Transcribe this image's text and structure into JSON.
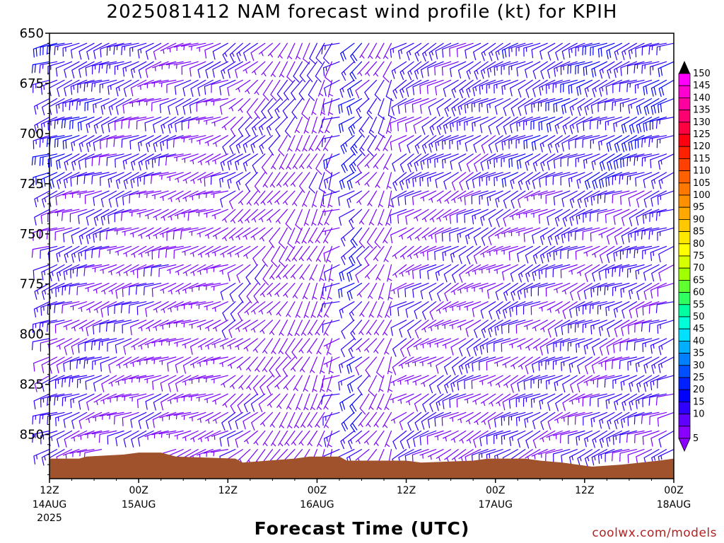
{
  "chart_data": {
    "type": "wind_profile",
    "title": "2025081412 NAM forecast wind profile (kt) for KPIH",
    "xlabel": "Forecast Time (UTC)",
    "ylabel": "",
    "y_ticks": [
      "650",
      "675",
      "700",
      "725",
      "750",
      "775",
      "800",
      "825",
      "850"
    ],
    "ylim": [
      650,
      872
    ],
    "y_inverted": true,
    "x_ticks": [
      {
        "top": "12Z",
        "bottom": "14AUG",
        "extra": "2025",
        "hour": 0
      },
      {
        "top": "00Z",
        "bottom": "15AUG",
        "extra": "",
        "hour": 12
      },
      {
        "top": "12Z",
        "bottom": "",
        "extra": "",
        "hour": 24
      },
      {
        "top": "00Z",
        "bottom": "16AUG",
        "extra": "",
        "hour": 36
      },
      {
        "top": "12Z",
        "bottom": "",
        "extra": "",
        "hour": 48
      },
      {
        "top": "00Z",
        "bottom": "17AUG",
        "extra": "",
        "hour": 60
      },
      {
        "top": "12Z",
        "bottom": "",
        "extra": "",
        "hour": 72
      },
      {
        "top": "00Z",
        "bottom": "18AUG",
        "extra": "",
        "hour": 84
      }
    ],
    "xlim_hours": [
      0,
      84
    ],
    "forecast_step_hours": 1,
    "colorbar": {
      "ticks": [
        "150",
        "145",
        "140",
        "135",
        "130",
        "125",
        "120",
        "115",
        "110",
        "105",
        "100",
        "95",
        "90",
        "85",
        "80",
        "75",
        "70",
        "65",
        "60",
        "55",
        "50",
        "45",
        "40",
        "35",
        "30",
        "25",
        "20",
        "15",
        "10",
        "5"
      ],
      "colors": [
        "#ff00ff",
        "#ff00d0",
        "#ff00a0",
        "#ff0070",
        "#ff0040",
        "#ff0010",
        "#ff2000",
        "#ff4000",
        "#ff6000",
        "#ff7800",
        "#ff9000",
        "#ffa800",
        "#ffc800",
        "#ffe800",
        "#ffff00",
        "#d8ff00",
        "#a0ff00",
        "#60ff30",
        "#30ff60",
        "#00ffa0",
        "#00ffd8",
        "#00e0ff",
        "#00b0ff",
        "#0080ff",
        "#0050ff",
        "#0020ff",
        "#0000ff",
        "#3000ff",
        "#6000ff",
        "#8a00ff"
      ]
    },
    "terrain": [
      {
        "hour": 0,
        "top_hpa": 862
      },
      {
        "hour": 4,
        "top_hpa": 862
      },
      {
        "hour": 5,
        "top_hpa": 861
      },
      {
        "hour": 10,
        "top_hpa": 860
      },
      {
        "hour": 12,
        "top_hpa": 859
      },
      {
        "hour": 15,
        "top_hpa": 859
      },
      {
        "hour": 17,
        "top_hpa": 861
      },
      {
        "hour": 25,
        "top_hpa": 862
      },
      {
        "hour": 26,
        "top_hpa": 864
      },
      {
        "hour": 33,
        "top_hpa": 862
      },
      {
        "hour": 35,
        "top_hpa": 861
      },
      {
        "hour": 39,
        "top_hpa": 861
      },
      {
        "hour": 40,
        "top_hpa": 863
      },
      {
        "hour": 48,
        "top_hpa": 863
      },
      {
        "hour": 50,
        "top_hpa": 864
      },
      {
        "hour": 57,
        "top_hpa": 863
      },
      {
        "hour": 59,
        "top_hpa": 862
      },
      {
        "hour": 64,
        "top_hpa": 862
      },
      {
        "hour": 66,
        "top_hpa": 863
      },
      {
        "hour": 69,
        "top_hpa": 864
      },
      {
        "hour": 71,
        "top_hpa": 865
      },
      {
        "hour": 73,
        "top_hpa": 866
      },
      {
        "hour": 77,
        "top_hpa": 865
      },
      {
        "hour": 82,
        "top_hpa": 863
      },
      {
        "hour": 84,
        "top_hpa": 862
      }
    ],
    "wind_segments": [
      {
        "hours": [
          0,
          24
        ],
        "dir_deg": [
          250,
          250
        ],
        "speed_kt": [
          15,
          5
        ]
      },
      {
        "hours": [
          24,
          38
        ],
        "dir_deg": [
          240,
          200
        ],
        "speed_kt": [
          10,
          5
        ]
      },
      {
        "hours": [
          38,
          42
        ],
        "dir_deg": [
          260,
          230
        ],
        "speed_kt": [
          10,
          20
        ]
      },
      {
        "hours": [
          42,
          46
        ],
        "dir_deg": [
          230,
          200
        ],
        "speed_kt": [
          10,
          5
        ]
      },
      {
        "hours": [
          46,
          84
        ],
        "dir_deg": [
          240,
          250
        ],
        "speed_kt": [
          10,
          15
        ]
      }
    ],
    "gap_hours": [
      [
        39.5,
        40.5
      ],
      [
        46.6,
        47.4
      ]
    ],
    "grid": false,
    "colorbar_position": "right"
  },
  "watermark": "coolwx.com/models"
}
